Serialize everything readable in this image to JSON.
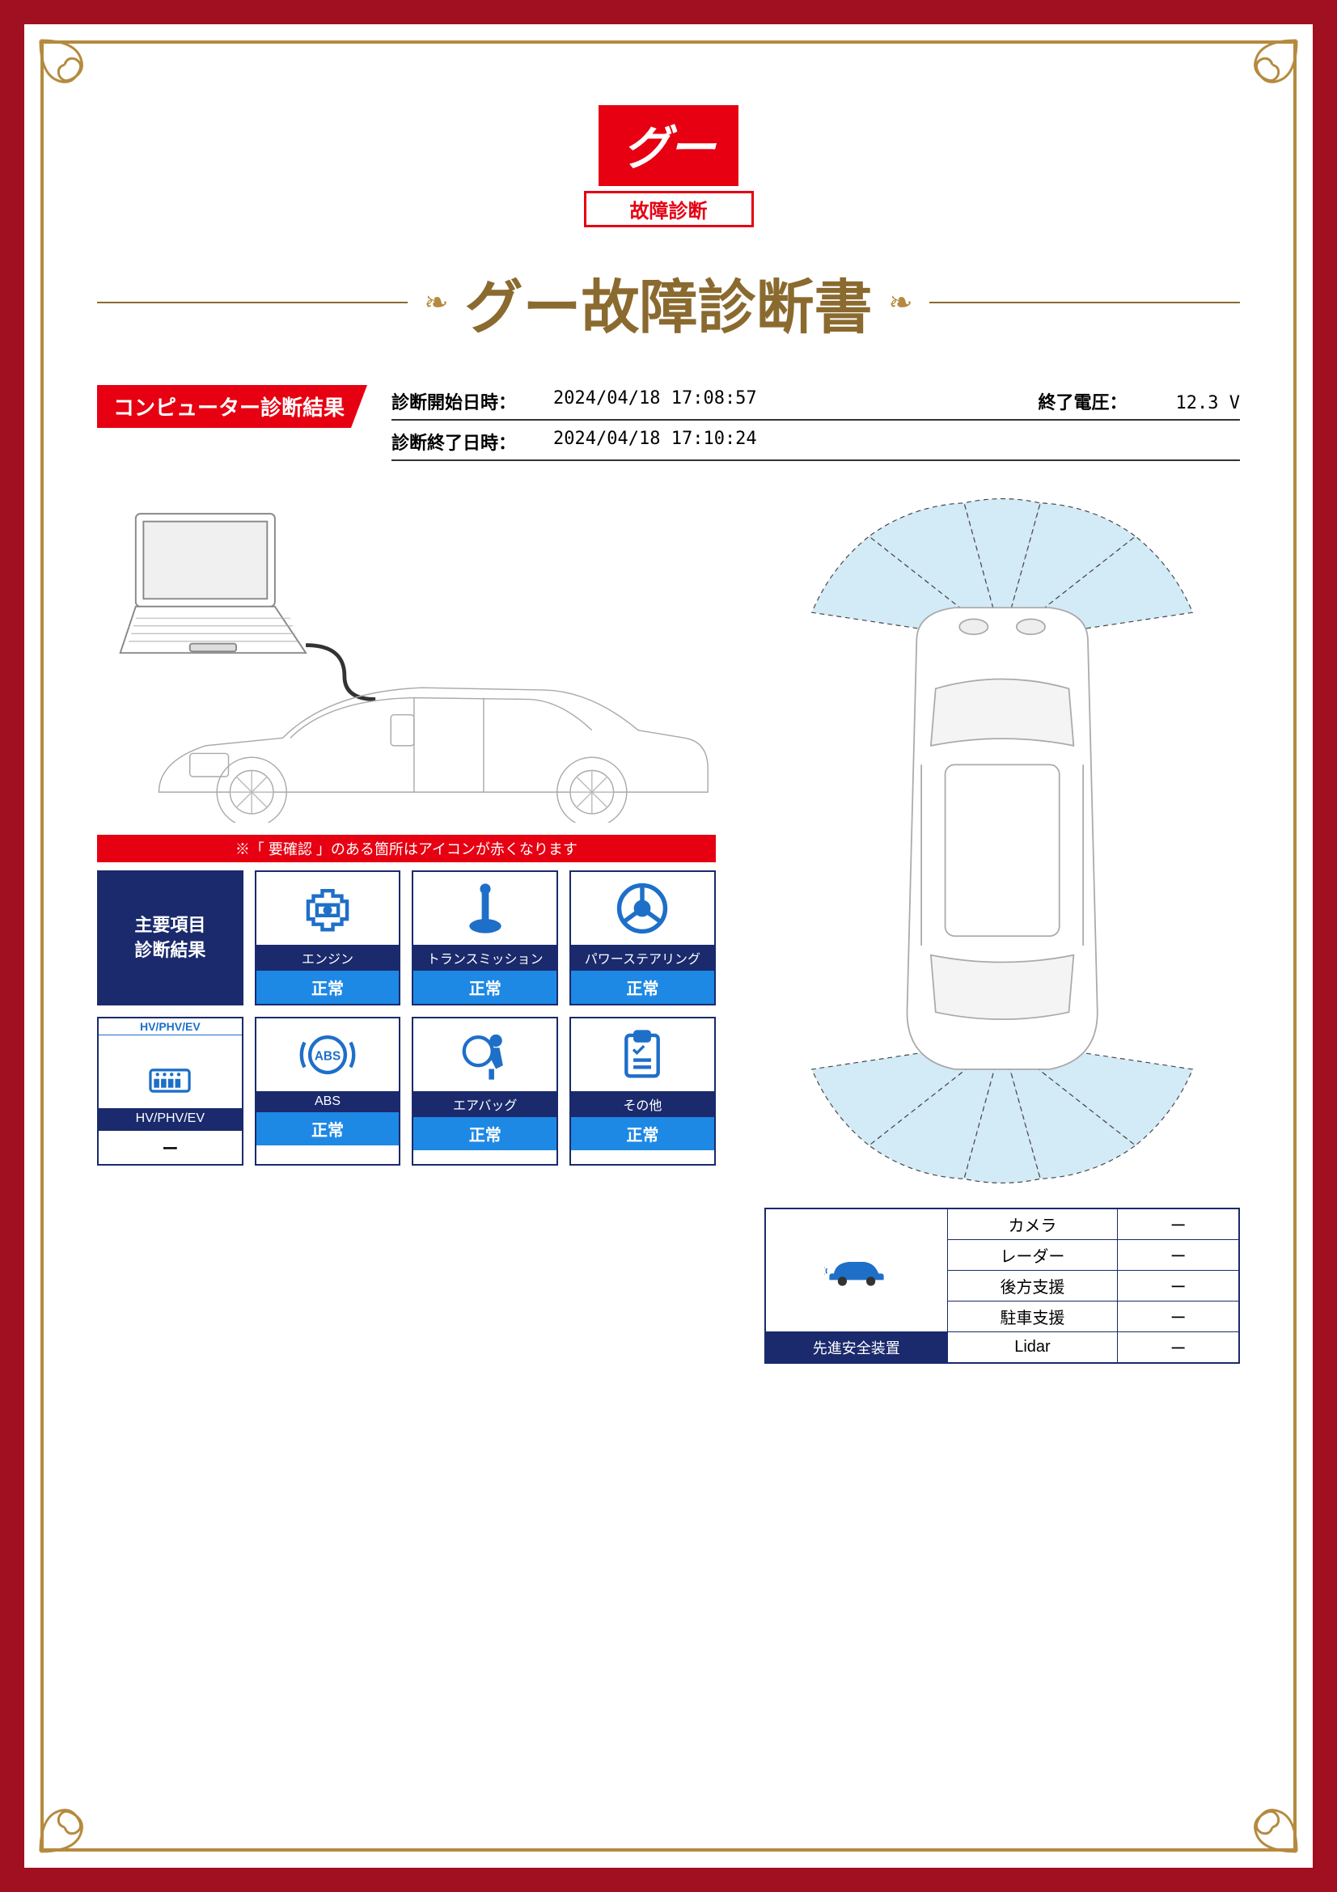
{
  "logo": {
    "brand": "グー",
    "subtitle": "故障診断"
  },
  "document": {
    "title": "グー故障診断書"
  },
  "section": {
    "tab": "コンピューター診断結果"
  },
  "meta": {
    "start_label": "診断開始日時：",
    "start_value": "2024/04/18 17:08:57",
    "end_label": "診断終了日時：",
    "end_value": "2024/04/18 17:10:24",
    "voltage_label": "終了電圧：",
    "voltage_value": "12.3 V"
  },
  "notice": "※「 要確認 」のある箇所はアイコンが赤くなります",
  "header_cell": "主要項目\n診断結果",
  "items": [
    {
      "name": "エンジン",
      "status": "正常",
      "icon": "engine"
    },
    {
      "name": "トランスミッション",
      "status": "正常",
      "icon": "transmission"
    },
    {
      "name": "パワーステアリング",
      "status": "正常",
      "icon": "steering"
    },
    {
      "name": "HV/PHV/EV",
      "status": "ー",
      "icon": "hvev",
      "dash": true
    },
    {
      "name": "ABS",
      "status": "正常",
      "icon": "abs"
    },
    {
      "name": "エアバッグ",
      "status": "正常",
      "icon": "airbag"
    },
    {
      "name": "その他",
      "status": "正常",
      "icon": "clipboard"
    }
  ],
  "hvev_badge": "HV/PHV/EV",
  "safety": {
    "title": "先進安全装置",
    "rows": [
      {
        "label": "カメラ",
        "value": "ー"
      },
      {
        "label": "レーダー",
        "value": "ー"
      },
      {
        "label": "後方支援",
        "value": "ー"
      },
      {
        "label": "駐車支援",
        "value": "ー"
      },
      {
        "label": "Lidar",
        "value": "ー"
      }
    ]
  },
  "colors": {
    "frame": "#a01020",
    "ornament": "#b58a3f",
    "title": "#8a6a2f",
    "red": "#e60012",
    "navy": "#1a2a6c",
    "blue": "#1e88e5",
    "icon_blue": "#1e6fc8"
  }
}
